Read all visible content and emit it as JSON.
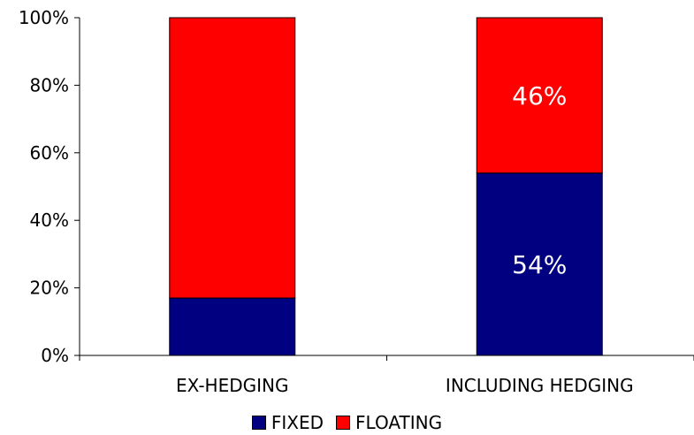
{
  "chart_data": {
    "type": "bar",
    "stacked": true,
    "categories": [
      "EX-HEDGING",
      "INCLUDING HEDGING"
    ],
    "series": [
      {
        "name": "FIXED",
        "color": "#000080",
        "values": [
          17,
          54
        ],
        "data_labels": [
          "",
          "54%"
        ]
      },
      {
        "name": "FLOATING",
        "color": "#ff0000",
        "values": [
          83,
          46
        ],
        "data_labels": [
          "",
          "46%"
        ]
      }
    ],
    "y_ticks": [
      "0%",
      "20%",
      "40%",
      "60%",
      "80%",
      "100%"
    ],
    "ylim": [
      0,
      100
    ],
    "grid": false,
    "legend_position": "bottom"
  }
}
